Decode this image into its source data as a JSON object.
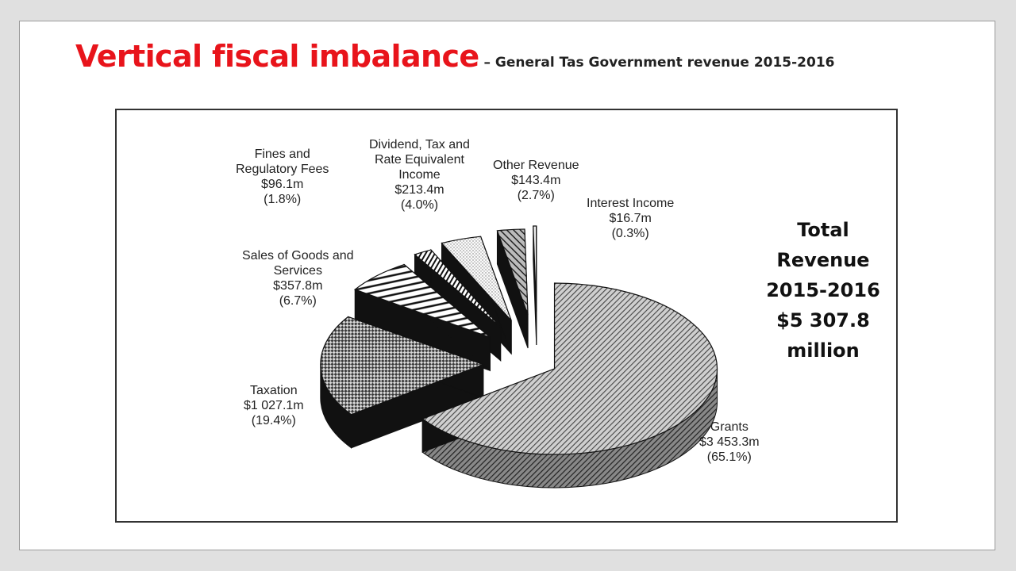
{
  "slide": {
    "title_main": "Vertical fiscal imbalance",
    "title_sub": " – General Tas Government revenue 2015-2016"
  },
  "total_box": {
    "line1": "Total",
    "line2": "Revenue",
    "line3": "2015-2016",
    "line4": "$5 307.8",
    "line5": "million"
  },
  "chart_data": {
    "type": "pie",
    "title": "",
    "total": "$5 307.8 million",
    "series": [
      {
        "name": "Grants",
        "label_lines": [
          "Grants"
        ],
        "value": 3453.3,
        "value_text": "$3 453.3m",
        "percent": 65.1,
        "percent_text": "(65.1%)",
        "fill": "diag-fine"
      },
      {
        "name": "Taxation",
        "label_lines": [
          "Taxation"
        ],
        "value": 1027.1,
        "value_text": "$1 027.1m",
        "percent": 19.4,
        "percent_text": "(19.4%)",
        "fill": "checker"
      },
      {
        "name": "Sales of Goods and Services",
        "label_lines": [
          "Sales of Goods and",
          "Services"
        ],
        "value": 357.8,
        "value_text": "$357.8m",
        "percent": 6.7,
        "percent_text": "(6.7%)",
        "fill": "hstripe"
      },
      {
        "name": "Fines and Regulatory Fees",
        "label_lines": [
          "Fines and",
          "Regulatory Fees"
        ],
        "value": 96.1,
        "value_text": "$96.1m",
        "percent": 1.8,
        "percent_text": "(1.8%)",
        "fill": "vstripe"
      },
      {
        "name": "Dividend, Tax and Rate Equivalent Income",
        "label_lines": [
          "Dividend, Tax and",
          "Rate Equivalent",
          "Income"
        ],
        "value": 213.4,
        "value_text": "$213.4m",
        "percent": 4.0,
        "percent_text": "(4.0%)",
        "fill": "dots"
      },
      {
        "name": "Other Revenue",
        "label_lines": [
          "Other Revenue"
        ],
        "value": 143.4,
        "value_text": "$143.4m",
        "percent": 2.7,
        "percent_text": "(2.7%)",
        "fill": "diag-coarse"
      },
      {
        "name": "Interest Income",
        "label_lines": [
          "Interest Income"
        ],
        "value": 16.7,
        "value_text": "$16.7m",
        "percent": 0.3,
        "percent_text": "(0.3%)",
        "fill": "plain"
      }
    ],
    "legend": "none (direct labels)"
  }
}
